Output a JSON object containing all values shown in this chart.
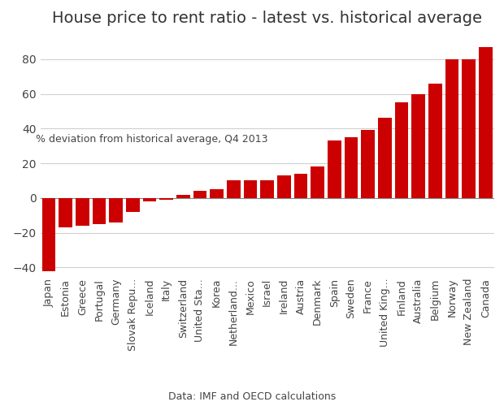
{
  "title": "House price to rent ratio - latest vs. historical average",
  "ylabel": "% deviation from historical average, Q4 2013",
  "xlabel": "Data: IMF and OECD calculations",
  "background_color": "#ffffff",
  "bar_color": "#cc0000",
  "gridcolor": "#d0d0d0",
  "categories": [
    "Japan",
    "Estonia",
    "Greece",
    "Portugal",
    "Germany",
    "Slovak Repu...",
    "Iceland",
    "Italy",
    "Switzerland",
    "United Sta...",
    "Korea",
    "Netherland...",
    "Mexico",
    "Israel",
    "Ireland",
    "Austria",
    "Denmark",
    "Spain",
    "Sweden",
    "France",
    "United King...",
    "Finland",
    "Australia",
    "Belgium",
    "Norway",
    "New Zealand",
    "Canada"
  ],
  "values": [
    -42,
    -17,
    -16,
    -15,
    -14,
    -8,
    -2,
    -1,
    2,
    4,
    5,
    10,
    10,
    10,
    13,
    14,
    18,
    33,
    35,
    39,
    46,
    55,
    60,
    66,
    80,
    80,
    87
  ],
  "ylim": [
    -45,
    93
  ],
  "yticks": [
    -40,
    -20,
    0,
    20,
    40,
    60,
    80
  ],
  "title_fontsize": 14,
  "tick_fontsize": 9,
  "ylabel_fontsize": 9,
  "xlabel_fontsize": 9
}
